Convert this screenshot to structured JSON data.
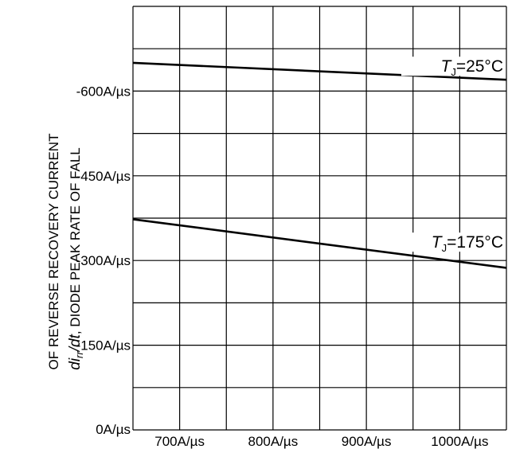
{
  "chart_data": {
    "type": "line",
    "title": "",
    "xlabel": "",
    "ylabel": {
      "italic_part": "di",
      "subscript": "rr",
      "italic_tail": "/dt",
      "line1_rest": ", DIODE PEAK RATE OF FALL",
      "line2": "OF REVERSE RECOVERY CURRENT"
    },
    "x_ticks": [
      "700A/µs",
      "800A/µs",
      "900A/µs",
      "1000A/µs"
    ],
    "x_tick_values": [
      700,
      800,
      900,
      1000
    ],
    "y_ticks": [
      "0A/µs",
      "-150A/µs",
      "-300A/µs",
      "-450A/µs",
      "-600A/µs"
    ],
    "y_tick_values": [
      0,
      -150,
      -300,
      -450,
      -600
    ],
    "xlim": [
      650,
      1050
    ],
    "ylim": [
      0,
      -750
    ],
    "grid": true,
    "series": [
      {
        "label_symbol": "T",
        "label_sub": "J",
        "label_value": "=25°C",
        "x": [
          650,
          1050
        ],
        "y": [
          -650,
          -620
        ]
      },
      {
        "label_symbol": "T",
        "label_sub": "J",
        "label_value": "=175°C",
        "x": [
          650,
          1050
        ],
        "y": [
          -373,
          -287
        ]
      }
    ]
  }
}
